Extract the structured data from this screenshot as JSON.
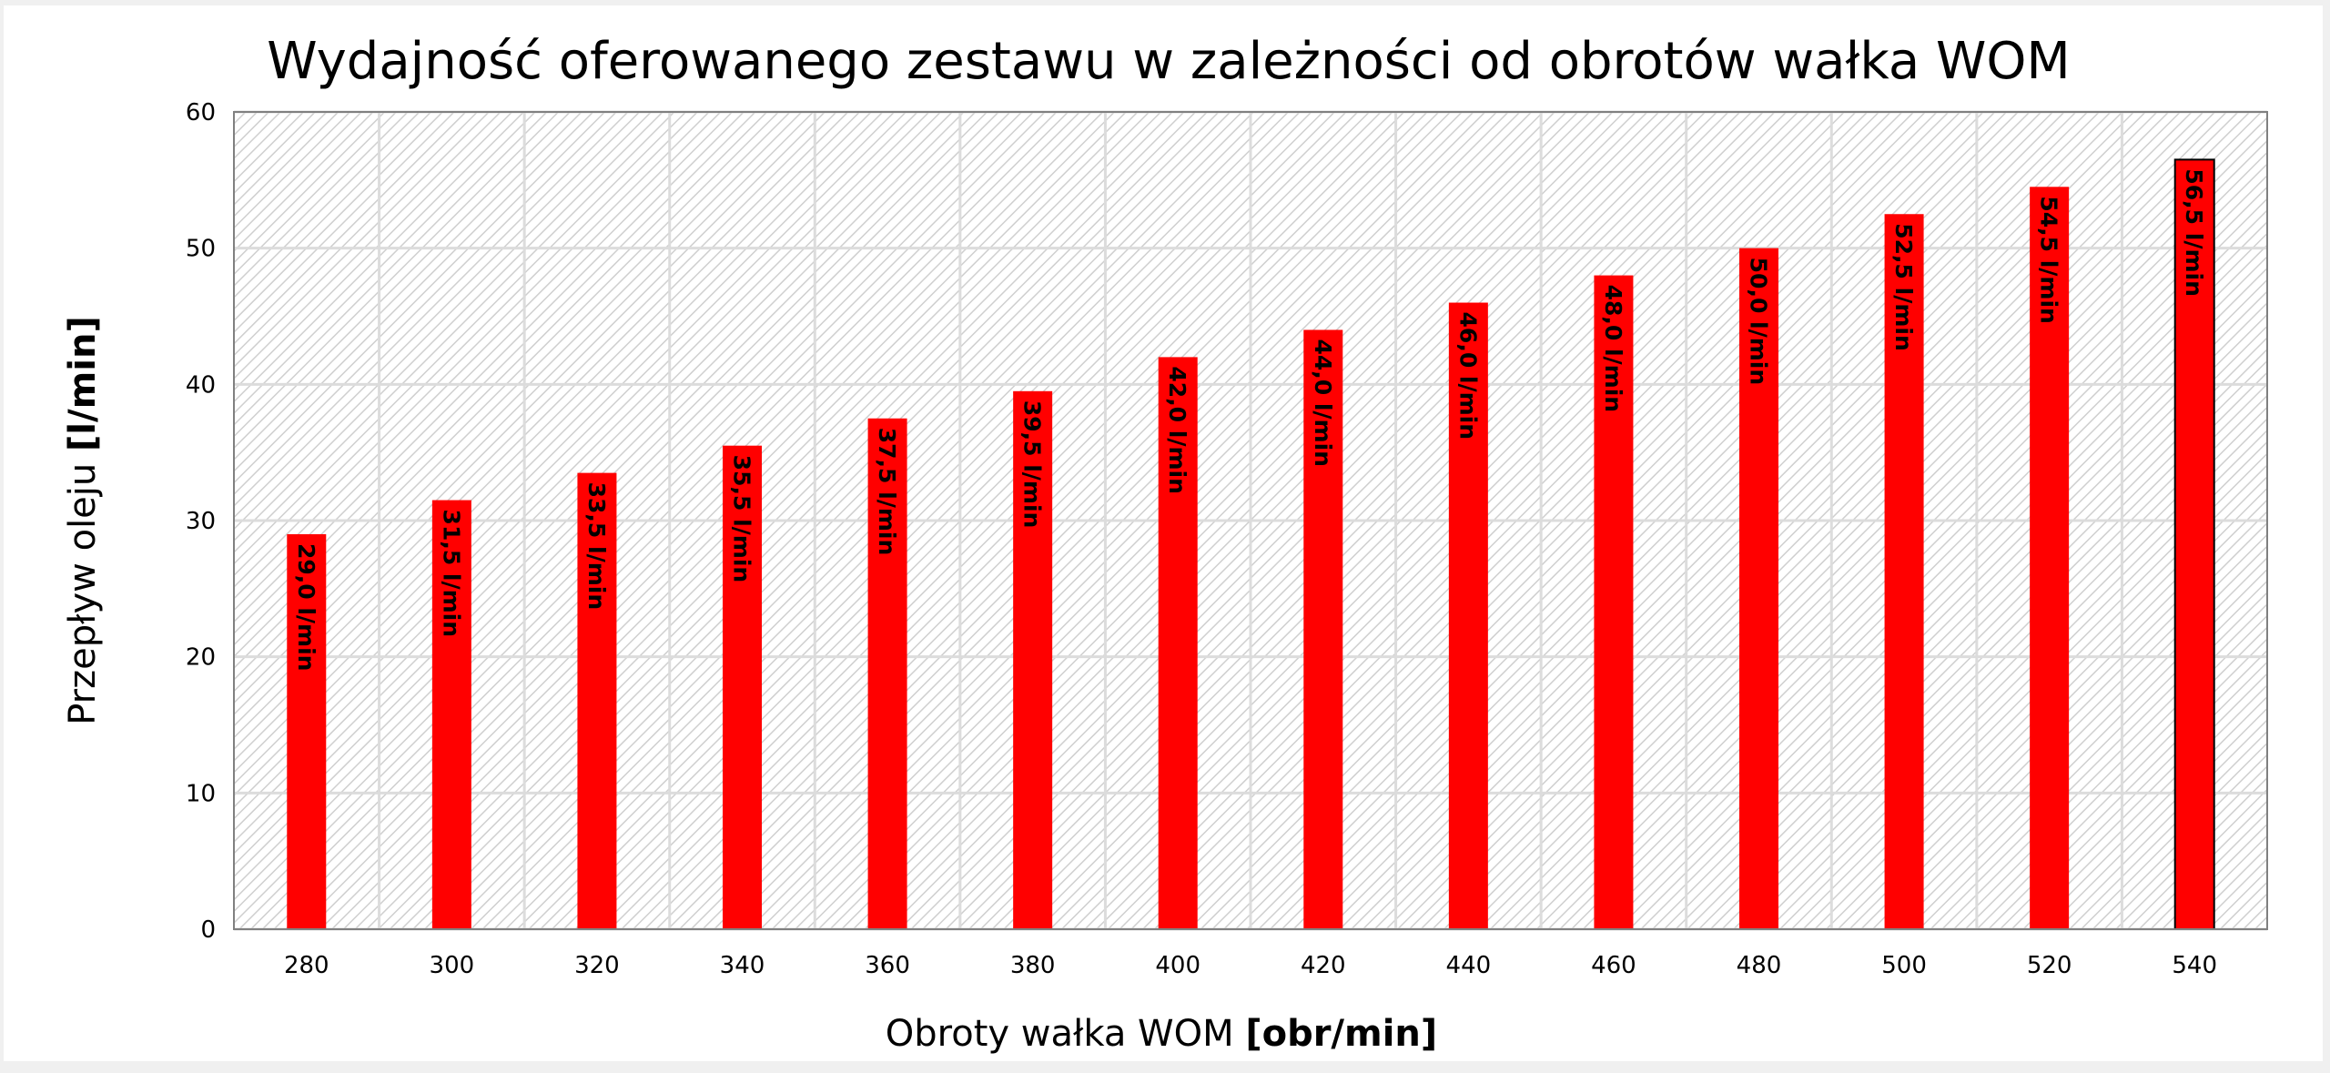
{
  "chart_data": {
    "type": "bar",
    "title": "Wydajność oferowanego zestawu w zależności od obrotów wałka WOM",
    "xlabel": "Obroty wałka WOM",
    "xlabel_unit": "[obr/min]",
    "ylabel": "Przepływ oleju",
    "ylabel_unit": "[l/min]",
    "ylim": [
      0,
      60
    ],
    "yticks": [
      0,
      10,
      20,
      30,
      40,
      50,
      60
    ],
    "grid": true,
    "categories": [
      "280",
      "300",
      "320",
      "340",
      "360",
      "380",
      "400",
      "420",
      "440",
      "460",
      "480",
      "500",
      "520",
      "540"
    ],
    "values": [
      29.0,
      31.5,
      33.5,
      35.5,
      37.5,
      39.5,
      42.0,
      44.0,
      46.0,
      48.0,
      50.0,
      52.5,
      54.5,
      56.5
    ],
    "data_labels": [
      "29,0 l/min",
      "31,5 l/min",
      "33,5 l/min",
      "35,5 l/min",
      "37,5 l/min",
      "39,5 l/min",
      "42,0 l/min",
      "44,0 l/min",
      "46,0 l/min",
      "48,0 l/min",
      "50,0 l/min",
      "52,5 l/min",
      "54,5 l/min",
      "56,5 l/min"
    ],
    "bar_color": "#ff0000",
    "legend": "none"
  }
}
